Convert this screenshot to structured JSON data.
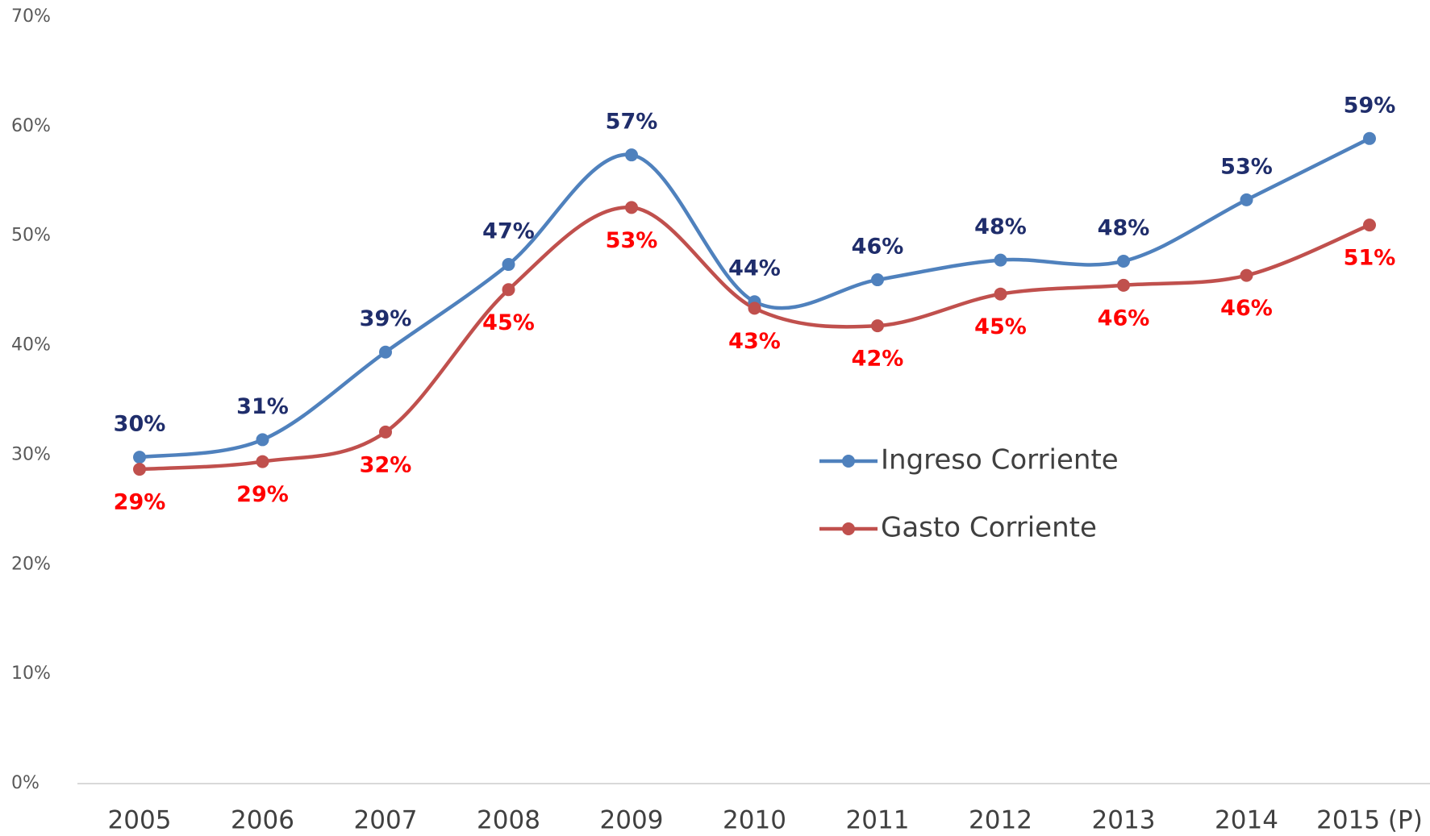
{
  "chart_data": {
    "type": "line",
    "categories": [
      "2005",
      "2006",
      "2007",
      "2008",
      "2009",
      "2010",
      "2011",
      "2012",
      "2013",
      "2014",
      "2015 (P)"
    ],
    "series": [
      {
        "name": "Ingreso Corriente",
        "color": "#4f81bd",
        "label_color": "#1f2d6b",
        "values": [
          29.8,
          31.4,
          39.4,
          47.4,
          57.4,
          44.0,
          46.0,
          47.8,
          47.7,
          53.3,
          58.9
        ],
        "value_labels": [
          "30%",
          "31%",
          "39%",
          "47%",
          "57%",
          "44%",
          "46%",
          "48%",
          "48%",
          "53%",
          "59%"
        ]
      },
      {
        "name": "Gasto Corriente",
        "color": "#c0504d",
        "label_color": "#ff0000",
        "values": [
          28.7,
          29.4,
          32.1,
          45.1,
          52.6,
          43.4,
          41.8,
          44.7,
          45.5,
          46.4,
          51.0
        ],
        "value_labels": [
          "29%",
          "29%",
          "32%",
          "45%",
          "53%",
          "43%",
          "42%",
          "45%",
          "46%",
          "46%",
          "51%"
        ]
      }
    ],
    "ylim": [
      0,
      70
    ],
    "yticks": [
      {
        "value": 0,
        "label": "0%"
      },
      {
        "value": 10,
        "label": "10%"
      },
      {
        "value": 20,
        "label": "20%"
      },
      {
        "value": 30,
        "label": "30%"
      },
      {
        "value": 40,
        "label": "40%"
      },
      {
        "value": 50,
        "label": "50%"
      },
      {
        "value": 60,
        "label": "60%"
      },
      {
        "value": 70,
        "label": "70%"
      }
    ],
    "smooth": true
  }
}
